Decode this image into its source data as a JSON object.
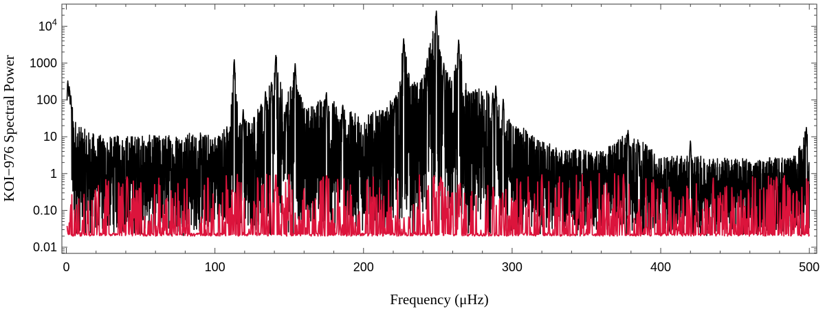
{
  "chart_data": {
    "type": "line",
    "title": "",
    "xlabel": "Frequency (μHz)",
    "ylabel": "KOI−976 Spectral Power",
    "xlim": [
      -3,
      505
    ],
    "ylim": [
      0.0068,
      40000
    ],
    "y_scale": "log",
    "grid": false,
    "legend": "none",
    "x_ticks": [
      {
        "value": 0,
        "label": "0"
      },
      {
        "value": 100,
        "label": "100"
      },
      {
        "value": 200,
        "label": "200"
      },
      {
        "value": 300,
        "label": "300"
      },
      {
        "value": 400,
        "label": "400"
      },
      {
        "value": 500,
        "label": "500"
      }
    ],
    "y_ticks": [
      {
        "value": 0.01,
        "label": "0.01"
      },
      {
        "value": 0.1,
        "label": "0.10"
      },
      {
        "value": 1,
        "label": "1"
      },
      {
        "value": 10,
        "label": "10"
      },
      {
        "value": 100,
        "label": "100"
      },
      {
        "value": 1000,
        "label": "1000"
      },
      {
        "value": 10000,
        "base": "10",
        "exponent": "4"
      }
    ],
    "frequency_range": [
      0.5,
      500
    ],
    "floor": 0.02,
    "series": [
      {
        "color": "#000000",
        "envelope": [
          [
            0.5,
            20
          ],
          [
            1,
            220
          ],
          [
            2,
            320
          ],
          [
            3,
            150
          ],
          [
            5,
            40
          ],
          [
            10,
            18
          ],
          [
            20,
            12
          ],
          [
            30,
            10
          ],
          [
            40,
            12
          ],
          [
            60,
            11
          ],
          [
            80,
            14
          ],
          [
            100,
            12
          ],
          [
            110,
            25
          ],
          [
            113,
            1200
          ],
          [
            116,
            30
          ],
          [
            125,
            40
          ],
          [
            135,
            120
          ],
          [
            141,
            1650
          ],
          [
            147,
            80
          ],
          [
            154,
            900
          ],
          [
            160,
            60
          ],
          [
            175,
            150
          ],
          [
            190,
            50
          ],
          [
            200,
            40
          ],
          [
            215,
            60
          ],
          [
            223,
            200
          ],
          [
            227,
            4700
          ],
          [
            232,
            300
          ],
          [
            240,
            400
          ],
          [
            249,
            26000
          ],
          [
            254,
            900
          ],
          [
            260,
            400
          ],
          [
            264,
            4300
          ],
          [
            270,
            200
          ],
          [
            285,
            200
          ],
          [
            295,
            40
          ],
          [
            310,
            15
          ],
          [
            330,
            5
          ],
          [
            360,
            4
          ],
          [
            378,
            15
          ],
          [
            400,
            3
          ],
          [
            430,
            3
          ],
          [
            460,
            2.5
          ],
          [
            490,
            3
          ],
          [
            498,
            18
          ],
          [
            500,
            3
          ]
        ],
        "peaks": [
          [
            1,
            330
          ],
          [
            2,
            230
          ],
          [
            3,
            130
          ],
          [
            113,
            1250
          ],
          [
            119,
            55
          ],
          [
            134,
            170
          ],
          [
            138,
            300
          ],
          [
            141,
            1650
          ],
          [
            148,
            75
          ],
          [
            154,
            1000
          ],
          [
            175,
            160
          ],
          [
            186,
            75
          ],
          [
            221,
            110
          ],
          [
            227,
            4700
          ],
          [
            243,
            560
          ],
          [
            249,
            26000
          ],
          [
            254,
            1000
          ],
          [
            264,
            4300
          ],
          [
            287,
            160
          ],
          [
            289,
            250
          ],
          [
            294,
            110
          ],
          [
            378,
            15
          ],
          [
            385,
            7
          ],
          [
            420,
            8
          ],
          [
            498,
            18
          ]
        ]
      },
      {
        "color": "#dc143c",
        "envelope": [
          [
            0.5,
            0.6
          ],
          [
            10,
            0.6
          ],
          [
            40,
            0.8
          ],
          [
            80,
            0.8
          ],
          [
            120,
            1
          ],
          [
            150,
            1
          ],
          [
            200,
            0.8
          ],
          [
            248,
            1
          ],
          [
            300,
            0.8
          ],
          [
            320,
            0.9
          ],
          [
            350,
            1.1
          ],
          [
            380,
            1
          ],
          [
            400,
            0.8
          ],
          [
            440,
            0.8
          ],
          [
            470,
            0.9
          ],
          [
            500,
            0.9
          ]
        ],
        "peaks": [
          [
            41,
            1
          ],
          [
            141,
            1.2
          ],
          [
            175,
            1
          ],
          [
            252,
            1
          ],
          [
            265,
            0.6
          ],
          [
            320,
            1
          ],
          [
            375,
            1
          ],
          [
            478,
            1
          ]
        ]
      }
    ]
  }
}
